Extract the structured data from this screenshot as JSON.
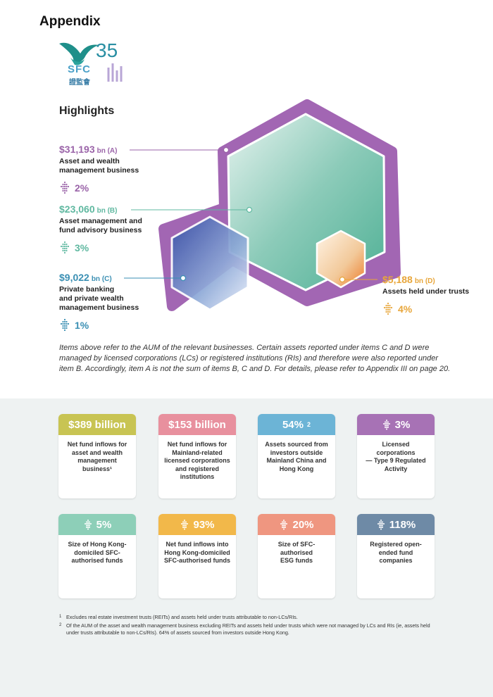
{
  "header": {
    "title": "Appendix"
  },
  "logo": {
    "text": "SFC",
    "number": "35",
    "chinese": "證監會"
  },
  "section": {
    "title": "Highlights"
  },
  "items": [
    {
      "value": "$31,193",
      "unit": "bn (A)",
      "desc1": "Asset and wealth",
      "desc2": "management business",
      "desc3": "",
      "pct": "2%",
      "color": "#9a63a8"
    },
    {
      "value": "$23,060",
      "unit": "bn (B)",
      "desc1": "Asset management and",
      "desc2": "fund advisory business",
      "desc3": "",
      "pct": "3%",
      "color": "#5fb8a0"
    },
    {
      "value": "$9,022",
      "unit": "bn (C)",
      "desc1": "Private banking",
      "desc2": "and private wealth",
      "desc3": "management business",
      "pct": "1%",
      "color": "#3a8fb3"
    },
    {
      "value": "$5,188",
      "unit": "bn (D)",
      "desc1": "Assets held under trusts",
      "desc2": "",
      "desc3": "",
      "pct": "4%",
      "color": "#e8a63a"
    }
  ],
  "note": "Items above refer to the AUM of the relevant businesses. Certain assets reported under items C and D were managed by licensed corporations (LCs) or registered institutions (RIs) and therefore were also reported under item B. Accordingly, item A is not the sum of items B, C and D. For details, please refer to Appendix III on page 20.",
  "cards": [
    {
      "value": "$389 billion",
      "sup": "",
      "arrow": false,
      "color": "#c8c453",
      "l1": "Net fund inflows for",
      "l2": "asset and wealth",
      "l3": "management",
      "l4": "business¹",
      "l5": ""
    },
    {
      "value": "$153 billion",
      "sup": "",
      "arrow": false,
      "color": "#e8909e",
      "l1": "Net fund inflows for",
      "l2": "Mainland-related",
      "l3": "licensed corporations",
      "l4": "and registered",
      "l5": "institutions"
    },
    {
      "value": "54%",
      "sup": "2",
      "arrow": false,
      "color": "#6cb4d6",
      "l1": "Assets sourced from",
      "l2": "investors outside",
      "l3": "Mainland China and",
      "l4": "Hong Kong",
      "l5": ""
    },
    {
      "value": "3%",
      "sup": "",
      "arrow": true,
      "color": "#a772b5",
      "l1": "Licensed corporations",
      "l2": "— Type 9 Regulated",
      "l3": "Activity",
      "l4": "",
      "l5": ""
    },
    {
      "value": "5%",
      "sup": "",
      "arrow": true,
      "color": "#8dcfb8",
      "l1": "Size of Hong Kong-",
      "l2": "domiciled SFC-",
      "l3": "authorised funds",
      "l4": "",
      "l5": ""
    },
    {
      "value": "93%",
      "sup": "",
      "arrow": true,
      "color": "#f2b84a",
      "l1": "Net fund inflows into",
      "l2": "Hong Kong-domiciled",
      "l3": "SFC-authorised funds",
      "l4": "",
      "l5": ""
    },
    {
      "value": "20%",
      "sup": "",
      "arrow": true,
      "color": "#ef9680",
      "l1": "Size of SFC-",
      "l2": "authorised",
      "l3": "ESG funds",
      "l4": "",
      "l5": ""
    },
    {
      "value": "118%",
      "sup": "",
      "arrow": true,
      "color": "#6e8aa6",
      "l1": "Registered open-",
      "l2": "ended fund",
      "l3": "companies",
      "l4": "",
      "l5": ""
    }
  ],
  "footnotes": [
    {
      "num": "1",
      "text": "Excludes real estate investment trusts (REITs) and assets held under trusts attributable to non-LCs/RIs."
    },
    {
      "num": "2",
      "text": "Of the AUM of the asset and wealth management business excluding REITs and assets held under trusts which were not managed by LCs and RIs (ie, assets held under trusts attributable to non-LCs/RIs). 64% of assets sourced from investors outside Hong Kong."
    }
  ]
}
